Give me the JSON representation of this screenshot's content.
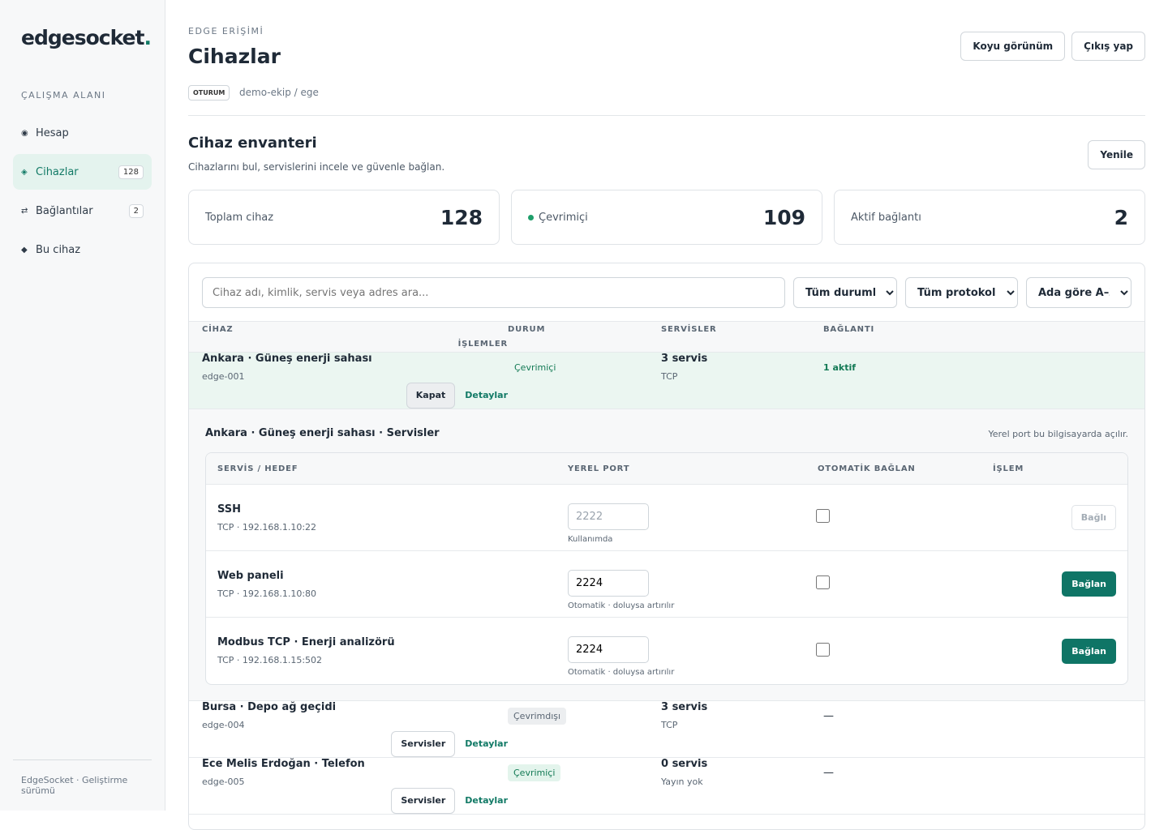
{
  "sidebar": {
    "logo": "edgesocket",
    "logo_dot": ".",
    "section": "ÇALIŞMA ALANI",
    "nav": [
      {
        "icon": "◉",
        "label": "Hesap"
      },
      {
        "icon": "◈",
        "label": "Cihazlar",
        "badge": 128
      },
      {
        "icon": "⇄",
        "label": "Bağlantılar",
        "badge": 2
      },
      {
        "icon": "◆",
        "label": "Bu cihaz"
      }
    ],
    "footer": "EdgeSocket · Geliştirme sürümü"
  },
  "header": {
    "eyebrow": "EDGE ERİŞİMİ",
    "title": "Cihazlar",
    "session_tag": "OTURUM",
    "session": "demo-ekip / ege",
    "buttons": [
      "Koyu görünüm",
      "Çıkış yap"
    ]
  },
  "inventory": {
    "title": "Cihaz envanteri",
    "subtitle": "Cihazlarını bul, servislerini incele ve güvenle bağlan.",
    "refresh": "Yenile"
  },
  "stats": [
    {
      "label": "Toplam cihaz",
      "value": 128
    },
    {
      "label": "Çevrimiçi",
      "value": 109
    },
    {
      "label": "Aktif bağlantı",
      "value": 2
    }
  ],
  "filters": {
    "search_placeholder": "Cihaz adı, kimlik, servis veya adres ara...",
    "selects": [
      "Tüm durumlar",
      "Tüm protokoller",
      "Ada göre A–Z"
    ]
  },
  "table": {
    "columns": [
      "CİHAZ",
      "DURUM",
      "SERVİSLER",
      "BAĞLANTI",
      "İŞLEMLER"
    ],
    "rows": [
      {
        "name": "Ankara · Güneş enerji sahası",
        "id": "edge-001",
        "status": "Çevrimiçi",
        "services": "3 servis",
        "protocol": "TCP",
        "connection": "1 aktif",
        "actions": [
          "Kapat",
          "Detaylar"
        ]
      },
      {
        "name": "Bursa · Depo ağ geçidi",
        "id": "edge-004",
        "status": "Çevrimdışı",
        "services": "3 servis",
        "protocol": "TCP",
        "connection": "—",
        "actions": [
          "Servisler",
          "Detaylar"
        ]
      },
      {
        "name": "Ece Melis Erdoğan · Telefon",
        "id": "edge-005",
        "status": "Çevrimiçi",
        "services": "0 servis",
        "protocol": "Yayın yok",
        "connection": "—",
        "actions": [
          "Servisler",
          "Detaylar"
        ]
      }
    ]
  },
  "expanded": {
    "title": "Ankara · Güneş enerji sahası · Servisler",
    "note": "Yerel port bu bilgisayarda açılır.",
    "columns": [
      "SERVİS / HEDEF",
      "YEREL PORT",
      "OTOMATİK BAĞLAN",
      "İŞLEM"
    ],
    "services": [
      {
        "name": "SSH",
        "target": "TCP · 192.168.1.10:22",
        "port": "2222",
        "port_note": "Kullanımda",
        "action": "Bağlı"
      },
      {
        "name": "Web paneli",
        "target": "TCP · 192.168.1.10:80",
        "port": "2224",
        "port_note": "Otomatik · doluysa artırılır",
        "action": "Bağlan"
      },
      {
        "name": "Modbus TCP · Enerji analizörü",
        "target": "TCP · 192.168.1.15:502",
        "port": "2224",
        "port_note": "Otomatik · doluysa artırılır",
        "action": "Bağlan"
      }
    ]
  }
}
